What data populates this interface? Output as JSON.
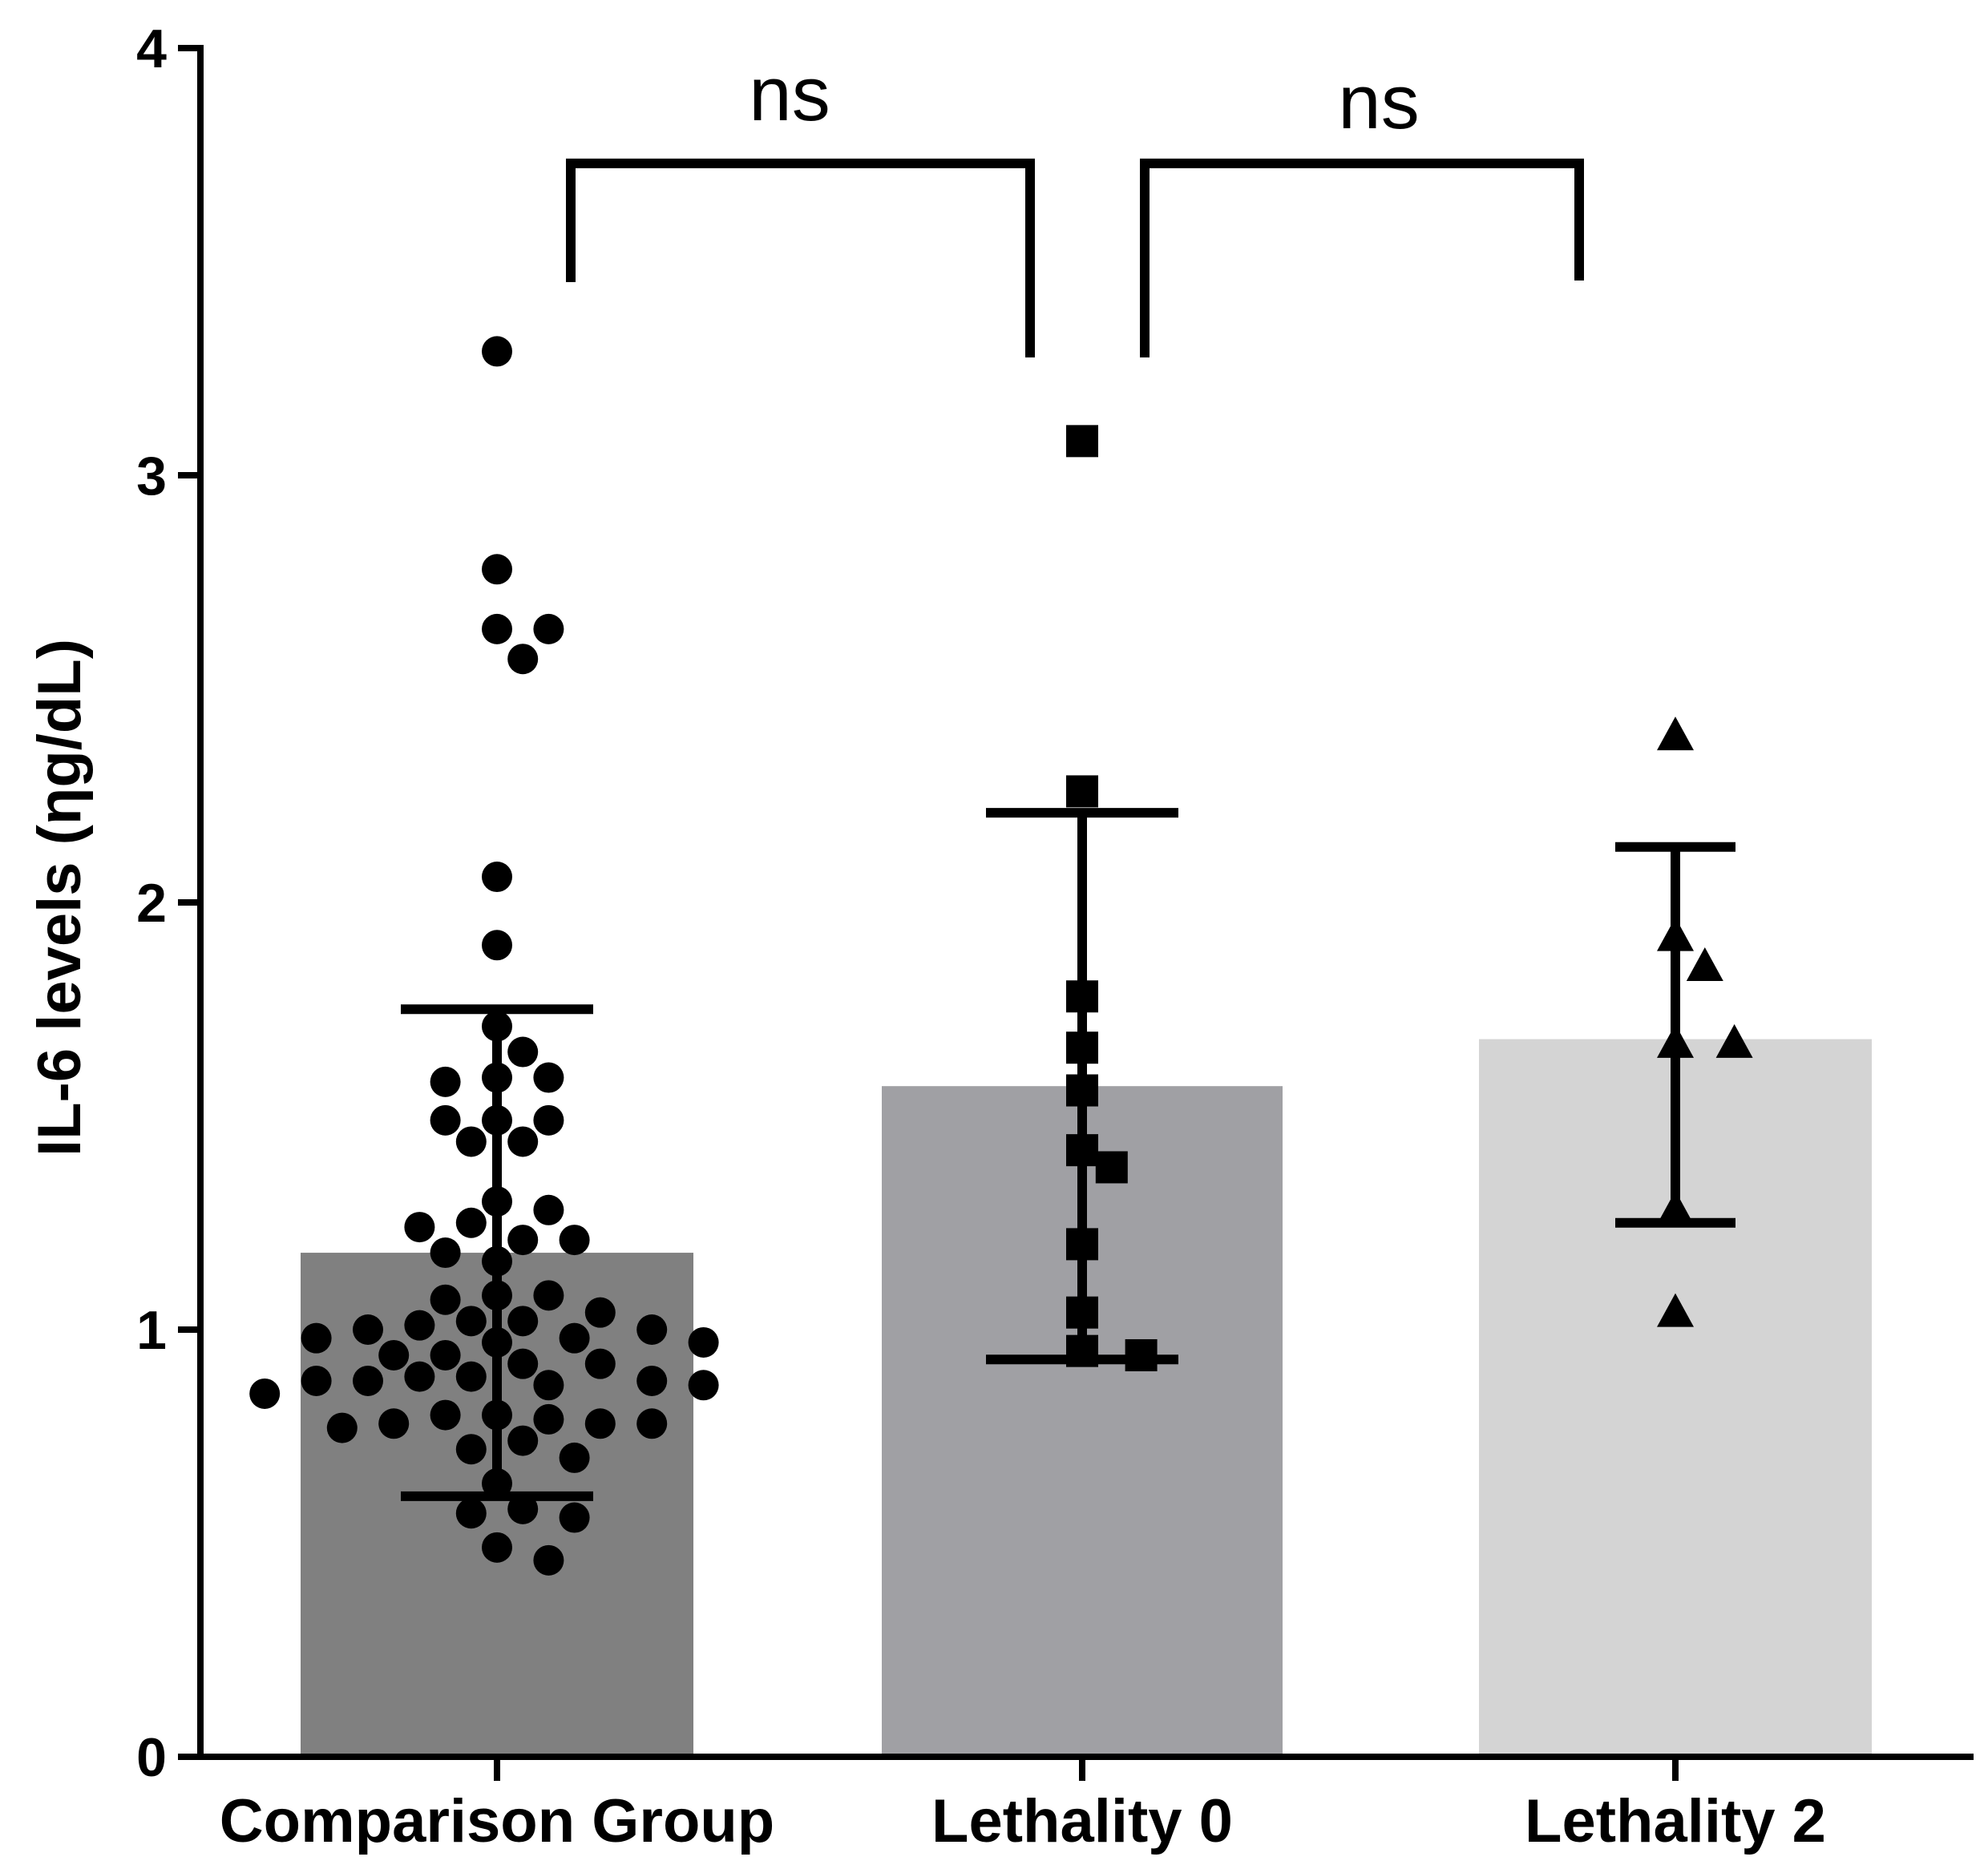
{
  "chart_data": {
    "type": "bar",
    "title": "",
    "xlabel": "",
    "ylabel": "IL-6 levels (ηg/dL)",
    "ylim": [
      0,
      4
    ],
    "yticks": [
      "0",
      "1",
      "2",
      "3",
      "4"
    ],
    "grid": false,
    "legend": "none",
    "categories": [
      "Comparison Group",
      "Lethality 0",
      "Lethality 2"
    ],
    "series": [
      {
        "name": "Comparison Group",
        "mean": 1.18,
        "error_low": 0.61,
        "error_high": 1.75,
        "color": "#808080",
        "marker": "circle",
        "points": [
          3.29,
          2.78,
          2.64,
          2.64,
          2.57,
          2.06,
          1.9,
          1.71,
          1.65,
          1.59,
          1.58,
          1.59,
          1.49,
          1.49,
          1.49,
          1.44,
          1.44,
          1.3,
          1.28,
          1.25,
          1.24,
          1.21,
          1.21,
          1.18,
          1.16,
          1.08,
          1.07,
          1.08,
          1.04,
          1.02,
          1.0,
          1.0,
          0.98,
          1.01,
          1.02,
          0.97,
          0.97,
          0.98,
          0.94,
          0.92,
          0.94,
          0.92,
          0.89,
          0.88,
          0.87,
          0.87,
          0.88,
          0.88,
          0.89,
          0.85,
          0.8,
          0.8,
          0.79,
          0.78,
          0.78,
          0.78,
          0.77,
          0.74,
          0.72,
          0.7,
          0.64,
          0.58,
          0.57,
          0.56,
          0.49,
          0.46
        ]
      },
      {
        "name": "Lethality 0",
        "mean": 1.57,
        "error_low": 0.93,
        "error_high": 2.21,
        "color": "#a0a0a4",
        "marker": "square",
        "points": [
          3.08,
          2.26,
          1.78,
          1.66,
          1.56,
          1.42,
          1.38,
          1.2,
          1.04,
          0.95,
          0.94
        ]
      },
      {
        "name": "Lethality 2",
        "mean": 1.68,
        "error_low": 1.25,
        "error_high": 2.13,
        "color": "#d4d4d4",
        "marker": "triangle",
        "points": [
          2.39,
          1.92,
          1.85,
          1.67,
          1.67,
          1.28,
          1.04
        ]
      }
    ],
    "comparisons": [
      {
        "from": "Comparison Group",
        "to": "Lethality 0",
        "label": "ns",
        "bracket_y": 3.73
      },
      {
        "from": "Lethality 0",
        "to": "Lethality 2",
        "label": "ns",
        "bracket_y": 3.73
      }
    ]
  }
}
